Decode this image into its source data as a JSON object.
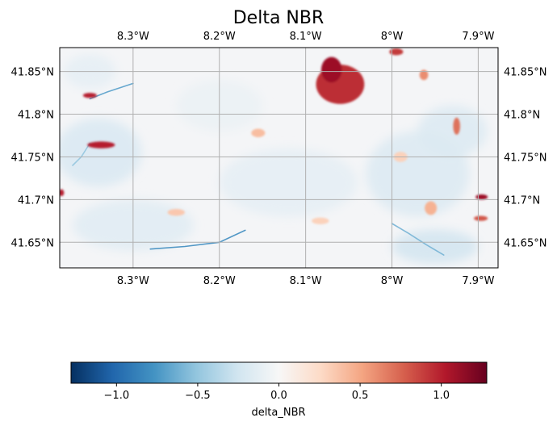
{
  "title": "Delta NBR",
  "map": {
    "lon_range": [
      -8.385,
      -7.877
    ],
    "lat_range": [
      41.62,
      41.878
    ],
    "lon_ticks": [
      {
        "value": -8.3,
        "label": "8.3°W"
      },
      {
        "value": -8.2,
        "label": "8.2°W"
      },
      {
        "value": -8.1,
        "label": "8.1°W"
      },
      {
        "value": -8.0,
        "label": "8°W"
      },
      {
        "value": -7.9,
        "label": "7.9°W"
      }
    ],
    "lat_ticks": [
      {
        "value": 41.85,
        "label": "41.85°N"
      },
      {
        "value": 41.8,
        "label": "41.8°N"
      },
      {
        "value": 41.75,
        "label": "41.75°N"
      },
      {
        "value": 41.7,
        "label": "41.7°N"
      },
      {
        "value": 41.65,
        "label": "41.65°N"
      }
    ],
    "gridlines": true,
    "background_color": "#f4f5f7",
    "burn_patches": [
      {
        "lon": -8.06,
        "lat": 41.835,
        "rx": 0.028,
        "ry": 0.023,
        "value": 0.95
      },
      {
        "lon": -8.07,
        "lat": 41.852,
        "rx": 0.012,
        "ry": 0.015,
        "value": 1.1
      },
      {
        "lon": -8.337,
        "lat": 41.764,
        "rx": 0.016,
        "ry": 0.004,
        "value": 1.0
      },
      {
        "lon": -8.35,
        "lat": 41.822,
        "rx": 0.008,
        "ry": 0.003,
        "value": 1.0
      },
      {
        "lon": -7.995,
        "lat": 41.873,
        "rx": 0.008,
        "ry": 0.004,
        "value": 0.9
      },
      {
        "lon": -7.925,
        "lat": 41.786,
        "rx": 0.004,
        "ry": 0.01,
        "value": 0.7
      },
      {
        "lon": -7.896,
        "lat": 41.703,
        "rx": 0.007,
        "ry": 0.003,
        "value": 1.1
      },
      {
        "lon": -7.897,
        "lat": 41.678,
        "rx": 0.008,
        "ry": 0.003,
        "value": 0.8
      },
      {
        "lon": -8.383,
        "lat": 41.708,
        "rx": 0.003,
        "ry": 0.004,
        "value": 1.0
      },
      {
        "lon": -7.963,
        "lat": 41.846,
        "rx": 0.005,
        "ry": 0.006,
        "value": 0.6
      },
      {
        "lon": -8.155,
        "lat": 41.778,
        "rx": 0.008,
        "ry": 0.005,
        "value": 0.4
      },
      {
        "lon": -7.955,
        "lat": 41.69,
        "rx": 0.007,
        "ry": 0.008,
        "value": 0.45
      },
      {
        "lon": -8.083,
        "lat": 41.675,
        "rx": 0.01,
        "ry": 0.004,
        "value": 0.3
      },
      {
        "lon": -7.99,
        "lat": 41.75,
        "rx": 0.008,
        "ry": 0.006,
        "value": 0.3
      },
      {
        "lon": -8.25,
        "lat": 41.685,
        "rx": 0.01,
        "ry": 0.004,
        "value": 0.35
      }
    ],
    "regrowth_patches": [
      {
        "lon": -8.34,
        "lat": 41.755,
        "rx": 0.05,
        "ry": 0.04,
        "value": -0.2
      },
      {
        "lon": -8.12,
        "lat": 41.72,
        "rx": 0.08,
        "ry": 0.04,
        "value": -0.12
      },
      {
        "lon": -7.97,
        "lat": 41.73,
        "rx": 0.06,
        "ry": 0.05,
        "value": -0.18
      },
      {
        "lon": -7.93,
        "lat": 41.78,
        "rx": 0.04,
        "ry": 0.03,
        "value": -0.18
      },
      {
        "lon": -8.3,
        "lat": 41.67,
        "rx": 0.07,
        "ry": 0.03,
        "value": -0.15
      },
      {
        "lon": -7.95,
        "lat": 41.645,
        "rx": 0.05,
        "ry": 0.02,
        "value": -0.25
      },
      {
        "lon": -8.35,
        "lat": 41.85,
        "rx": 0.03,
        "ry": 0.02,
        "value": -0.12
      },
      {
        "lon": -8.2,
        "lat": 41.81,
        "rx": 0.05,
        "ry": 0.03,
        "value": -0.08
      }
    ],
    "streams": [
      {
        "points": [
          [
            -8.35,
            41.818
          ],
          [
            -8.33,
            41.826
          ],
          [
            -8.3,
            41.836
          ]
        ],
        "value": -0.7
      },
      {
        "points": [
          [
            -8.28,
            41.642
          ],
          [
            -8.24,
            41.645
          ],
          [
            -8.2,
            41.65
          ],
          [
            -8.17,
            41.664
          ]
        ],
        "value": -0.8
      },
      {
        "points": [
          [
            -8.0,
            41.672
          ],
          [
            -7.98,
            41.66
          ],
          [
            -7.96,
            41.647
          ],
          [
            -7.94,
            41.635
          ]
        ],
        "value": -0.6
      },
      {
        "points": [
          [
            -8.37,
            41.74
          ],
          [
            -8.36,
            41.75
          ],
          [
            -8.35,
            41.766
          ]
        ],
        "value": -0.5
      }
    ]
  },
  "colorbar": {
    "label": "delta_NBR",
    "min": -1.28,
    "max": 1.28,
    "ticks": [
      {
        "value": -1.0,
        "label": "−1.0"
      },
      {
        "value": -0.5,
        "label": "−0.5"
      },
      {
        "value": 0.0,
        "label": "0.0"
      },
      {
        "value": 0.5,
        "label": "0.5"
      },
      {
        "value": 1.0,
        "label": "1.0"
      }
    ],
    "colors": [
      "#053061",
      "#2166ac",
      "#4393c3",
      "#92c5de",
      "#d1e5f0",
      "#f7f7f7",
      "#fddbc7",
      "#f4a582",
      "#d6604d",
      "#b2182b",
      "#67001f"
    ]
  }
}
